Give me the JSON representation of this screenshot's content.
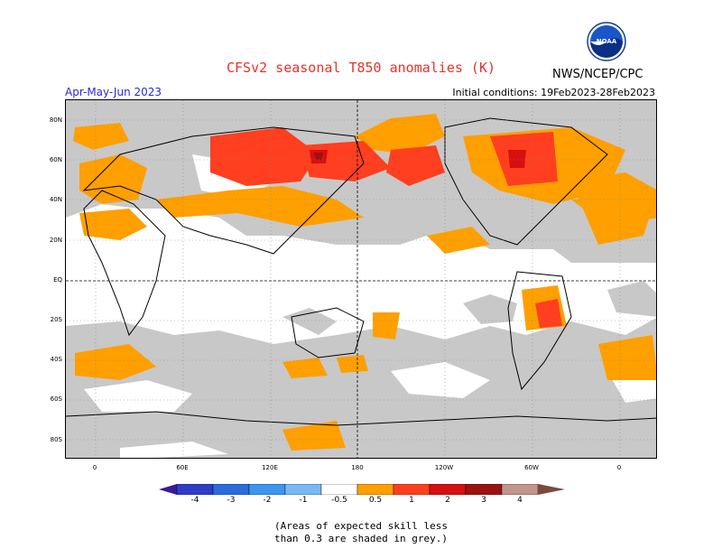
{
  "header": {
    "title": "CFSv2 seasonal T850 anomalies (K)",
    "organization": "NWS/NCEP/CPC",
    "season": "Apr-May-Jun 2023",
    "initial_conditions": "Initial conditions: 19Feb2023-28Feb2023",
    "logo_text": "NOAA"
  },
  "map": {
    "lat_labels": [
      "80N",
      "60N",
      "40N",
      "20N",
      "EQ",
      "20S",
      "40S",
      "60S",
      "80S"
    ],
    "lon_labels": [
      "0",
      "60E",
      "120E",
      "180",
      "120W",
      "60W",
      "0"
    ]
  },
  "legend": {
    "labels": [
      "-4",
      "-3",
      "-2",
      "-1",
      "-0.5",
      "0.5",
      "1",
      "2",
      "3",
      "4"
    ],
    "colors": {
      "below_4": "#3c1a96",
      "m4_m3": "#2f3cc8",
      "m3_m2": "#2a6cdc",
      "m2_m1": "#3c96f0",
      "m1_m05": "#78b9f5",
      "neutral": "#ffffff",
      "p05_p1": "#ff9f00",
      "p1_p2": "#ff3f1f",
      "p2_p3": "#d70f10",
      "p3_p4": "#9b1212",
      "p4_up": "#c0978a",
      "above_4": "#7a4a3a",
      "low_skill": "#c8c8c8"
    }
  },
  "footnote": {
    "line1": "(Areas of expected skill less",
    "line2": "than 0.3 are shaded in grey.)"
  }
}
